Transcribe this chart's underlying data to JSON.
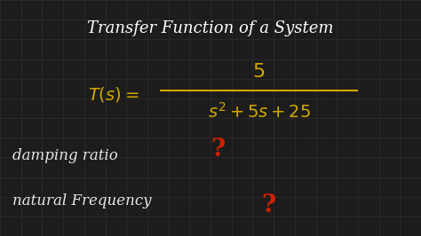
{
  "background_color": "#1c1c1c",
  "grid_color": "#2e2e2e",
  "title_text": "Transfer Function of a System",
  "title_color": "#ffffff",
  "title_fontsize": 13,
  "formula_color": "#d4a800",
  "formula_fontsize": 14,
  "question_color": "#cc2200",
  "question_fontsize": 20,
  "label_color": "#e8e8e8",
  "label_fontsize": 12,
  "figsize": [
    4.74,
    2.66
  ],
  "dpi": 100,
  "grid_nx": 20,
  "grid_ny": 12
}
